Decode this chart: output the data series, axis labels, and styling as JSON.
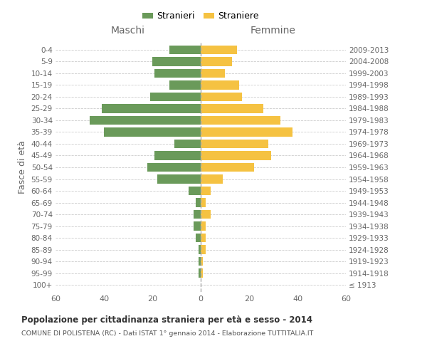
{
  "age_groups": [
    "100+",
    "95-99",
    "90-94",
    "85-89",
    "80-84",
    "75-79",
    "70-74",
    "65-69",
    "60-64",
    "55-59",
    "50-54",
    "45-49",
    "40-44",
    "35-39",
    "30-34",
    "25-29",
    "20-24",
    "15-19",
    "10-14",
    "5-9",
    "0-4"
  ],
  "birth_years": [
    "≤ 1913",
    "1914-1918",
    "1919-1923",
    "1924-1928",
    "1929-1933",
    "1934-1938",
    "1939-1943",
    "1944-1948",
    "1949-1953",
    "1954-1958",
    "1959-1963",
    "1964-1968",
    "1969-1973",
    "1974-1978",
    "1979-1983",
    "1984-1988",
    "1989-1993",
    "1994-1998",
    "1999-2003",
    "2004-2008",
    "2009-2013"
  ],
  "maschi": [
    0,
    1,
    1,
    1,
    2,
    3,
    3,
    2,
    5,
    18,
    22,
    19,
    11,
    40,
    46,
    41,
    21,
    13,
    19,
    20,
    13
  ],
  "femmine": [
    0,
    1,
    1,
    2,
    2,
    2,
    4,
    2,
    4,
    9,
    22,
    29,
    28,
    38,
    33,
    26,
    17,
    16,
    10,
    13,
    15
  ],
  "maschi_color": "#6a9a5a",
  "femmine_color": "#f5c242",
  "background_color": "#ffffff",
  "grid_color": "#cccccc",
  "title": "Popolazione per cittadinanza straniera per età e sesso - 2014",
  "subtitle": "COMUNE DI POLISTENA (RC) - Dati ISTAT 1° gennaio 2014 - Elaborazione TUTTITALIA.IT",
  "ylabel_left": "Fasce di età",
  "maschi_label": "Stranieri",
  "femmine_label": "Straniere",
  "maschi_header": "Maschi",
  "femmine_header": "Femmine",
  "xlim": 60,
  "label_color": "#666666",
  "grid_color_dash": "#cccccc"
}
